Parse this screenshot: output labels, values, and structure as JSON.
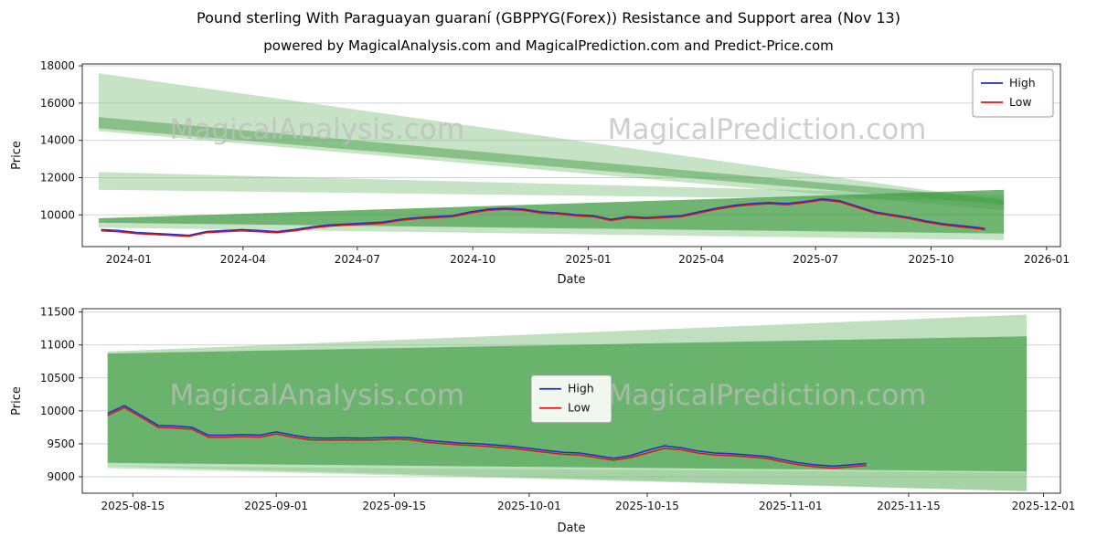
{
  "title": "Pound sterling With Paraguayan guaraní (GBPPYG(Forex)) Resistance and Support area (Nov 13)",
  "subtitle": "powered by MagicalAnalysis.com and MagicalPrediction.com and Predict-Price.com",
  "watermark": {
    "left_text": "MagicalAnalysis.com",
    "right_text": "MagicalPrediction.com",
    "color": "#bdbdbd"
  },
  "colors": {
    "high": "#1a2cd8",
    "low": "#e01212",
    "grid": "#d3d3d3",
    "frame": "#2b2b2b"
  },
  "chart_data": [
    {
      "type": "line",
      "name": "long-term-chart",
      "xlabel": "Date",
      "ylabel": "Price",
      "xlim": [
        "2023-11-25",
        "2026-01-12"
      ],
      "ylim": [
        8300,
        18100
      ],
      "yticks": [
        10000,
        12000,
        14000,
        16000,
        18000
      ],
      "xticks": [
        "2024-01",
        "2024-04",
        "2024-07",
        "2024-10",
        "2025-01",
        "2025-04",
        "2025-07",
        "2025-10",
        "2026-01"
      ],
      "grid": "horizontal",
      "legend": {
        "loc": "upper-right",
        "entries": [
          {
            "label": "High",
            "color": "#1a2cd8"
          },
          {
            "label": "Low",
            "color": "#e01212"
          }
        ]
      },
      "wm_frac_y": 0.41,
      "x": [
        "2023-12-10",
        "2023-12-24",
        "2024-01-07",
        "2024-01-21",
        "2024-02-04",
        "2024-02-18",
        "2024-03-03",
        "2024-03-17",
        "2024-03-31",
        "2024-04-14",
        "2024-04-28",
        "2024-05-12",
        "2024-05-26",
        "2024-06-09",
        "2024-06-23",
        "2024-07-07",
        "2024-07-21",
        "2024-08-04",
        "2024-08-18",
        "2024-09-01",
        "2024-09-15",
        "2024-09-29",
        "2024-10-13",
        "2024-10-27",
        "2024-11-10",
        "2024-11-24",
        "2024-12-08",
        "2024-12-22",
        "2025-01-05",
        "2025-01-19",
        "2025-02-02",
        "2025-02-16",
        "2025-03-02",
        "2025-03-16",
        "2025-03-30",
        "2025-04-13",
        "2025-04-27",
        "2025-05-11",
        "2025-05-25",
        "2025-06-08",
        "2025-06-22",
        "2025-07-06",
        "2025-07-20",
        "2025-08-03",
        "2025-08-17",
        "2025-08-31",
        "2025-09-14",
        "2025-09-28",
        "2025-10-12",
        "2025-10-26",
        "2025-11-09",
        "2025-11-13"
      ],
      "series": [
        {
          "name": "High",
          "color": "#1a2cd8",
          "y": [
            9210,
            9160,
            9060,
            9010,
            8960,
            8910,
            9110,
            9160,
            9210,
            9160,
            9110,
            9210,
            9360,
            9460,
            9510,
            9560,
            9610,
            9760,
            9860,
            9910,
            9960,
            10160,
            10310,
            10360,
            10310,
            10160,
            10110,
            10010,
            9960,
            9760,
            9910,
            9860,
            9910,
            9960,
            10160,
            10360,
            10510,
            10610,
            10660,
            10610,
            10710,
            10860,
            10760,
            10460,
            10160,
            10010,
            9860,
            9660,
            9510,
            9410,
            9310,
            9260
          ]
        },
        {
          "name": "Low",
          "color": "#e01212",
          "y": [
            9150,
            9100,
            9000,
            8950,
            8900,
            8850,
            9050,
            9100,
            9150,
            9100,
            9050,
            9150,
            9300,
            9400,
            9450,
            9500,
            9550,
            9700,
            9800,
            9850,
            9900,
            10100,
            10250,
            10300,
            10250,
            10100,
            10050,
            9950,
            9900,
            9700,
            9850,
            9800,
            9850,
            9900,
            10100,
            10300,
            10450,
            10550,
            10600,
            10550,
            10650,
            10800,
            10700,
            10400,
            10100,
            9950,
            9800,
            9600,
            9450,
            9350,
            9250,
            9200
          ]
        }
      ],
      "bands": [
        {
          "x0": "2023-12-08",
          "x1": "2025-11-28",
          "top0": 17600,
          "top1": 10750,
          "bot0": 14500,
          "bot1": 10250,
          "fill": "#80c080",
          "alpha": 0.45
        },
        {
          "x0": "2023-12-08",
          "x1": "2025-11-28",
          "top0": 15250,
          "top1": 10850,
          "bot0": 14650,
          "bot1": 10550,
          "fill": "#53a653",
          "alpha": 0.55
        },
        {
          "x0": "2023-12-08",
          "x1": "2025-11-28",
          "top0": 12300,
          "top1": 11050,
          "bot0": 11350,
          "bot1": 10750,
          "fill": "#80c080",
          "alpha": 0.45
        },
        {
          "x0": "2023-12-08",
          "x1": "2025-11-28",
          "top0": 9820,
          "top1": 11350,
          "bot0": 9580,
          "bot1": 9000,
          "fill": "#3f9b42",
          "alpha": 0.75
        },
        {
          "x0": "2023-12-08",
          "x1": "2025-11-28",
          "top0": 9580,
          "top1": 9050,
          "bot0": 9320,
          "bot1": 8650,
          "fill": "#80c080",
          "alpha": 0.45
        }
      ]
    },
    {
      "type": "line",
      "name": "short-term-chart",
      "xlabel": "Date",
      "ylabel": "Price",
      "xlim": [
        "2025-08-09",
        "2025-12-03"
      ],
      "ylim": [
        8750,
        11550
      ],
      "yticks": [
        9000,
        9500,
        10000,
        10500,
        11000,
        11500
      ],
      "xticks": [
        "2025-08-15",
        "2025-09-01",
        "2025-09-15",
        "2025-10-01",
        "2025-10-15",
        "2025-11-01",
        "2025-11-15",
        "2025-12-01"
      ],
      "grid": "horizontal",
      "legend": {
        "loc": "center",
        "entries": [
          {
            "label": "High",
            "color": "#1a2cd8"
          },
          {
            "label": "Low",
            "color": "#e01212"
          }
        ]
      },
      "wm_frac_y": 0.52,
      "x": [
        "2025-08-12",
        "2025-08-14",
        "2025-08-16",
        "2025-08-18",
        "2025-08-20",
        "2025-08-22",
        "2025-08-24",
        "2025-08-26",
        "2025-08-28",
        "2025-08-30",
        "2025-09-01",
        "2025-09-03",
        "2025-09-05",
        "2025-09-07",
        "2025-09-09",
        "2025-09-11",
        "2025-09-13",
        "2025-09-15",
        "2025-09-17",
        "2025-09-19",
        "2025-09-21",
        "2025-09-23",
        "2025-09-25",
        "2025-09-27",
        "2025-09-29",
        "2025-10-01",
        "2025-10-03",
        "2025-10-05",
        "2025-10-07",
        "2025-10-09",
        "2025-10-11",
        "2025-10-13",
        "2025-10-15",
        "2025-10-17",
        "2025-10-19",
        "2025-10-21",
        "2025-10-23",
        "2025-10-25",
        "2025-10-27",
        "2025-10-29",
        "2025-10-31",
        "2025-11-02",
        "2025-11-04",
        "2025-11-06",
        "2025-11-08",
        "2025-11-10"
      ],
      "series": [
        {
          "name": "High",
          "color": "#1a2cd8",
          "y": [
            9960,
            10080,
            9930,
            9780,
            9770,
            9750,
            9630,
            9630,
            9640,
            9630,
            9680,
            9630,
            9590,
            9585,
            9590,
            9585,
            9590,
            9600,
            9590,
            9550,
            9530,
            9510,
            9500,
            9480,
            9460,
            9430,
            9400,
            9370,
            9360,
            9320,
            9280,
            9320,
            9400,
            9470,
            9440,
            9390,
            9360,
            9350,
            9330,
            9310,
            9260,
            9210,
            9180,
            9160,
            9180,
            9200
          ]
        },
        {
          "name": "Low",
          "color": "#e01212",
          "y": [
            9930,
            10050,
            9900,
            9750,
            9740,
            9720,
            9600,
            9600,
            9610,
            9600,
            9650,
            9600,
            9560,
            9555,
            9560,
            9555,
            9560,
            9570,
            9560,
            9520,
            9500,
            9480,
            9470,
            9450,
            9430,
            9400,
            9370,
            9340,
            9330,
            9290,
            9250,
            9290,
            9360,
            9430,
            9410,
            9360,
            9330,
            9320,
            9300,
            9280,
            9230,
            9180,
            9150,
            9130,
            9150,
            9170
          ]
        }
      ],
      "bands": [
        {
          "x0": "2025-08-12",
          "x1": "2025-11-29",
          "top0": 10900,
          "top1": 11460,
          "bot0": 9160,
          "bot1": 8780,
          "fill": "#80c080",
          "alpha": 0.5
        },
        {
          "x0": "2025-08-12",
          "x1": "2025-11-29",
          "top0": 10870,
          "top1": 11130,
          "bot0": 9210,
          "bot1": 9080,
          "fill": "#46a049",
          "alpha": 0.7
        },
        {
          "x0": "2025-08-12",
          "x1": "2025-11-29",
          "top0": 9160,
          "top1": 9060,
          "bot0": 9130,
          "bot1": 8780,
          "fill": "#80c080",
          "alpha": 0.4
        }
      ]
    }
  ]
}
